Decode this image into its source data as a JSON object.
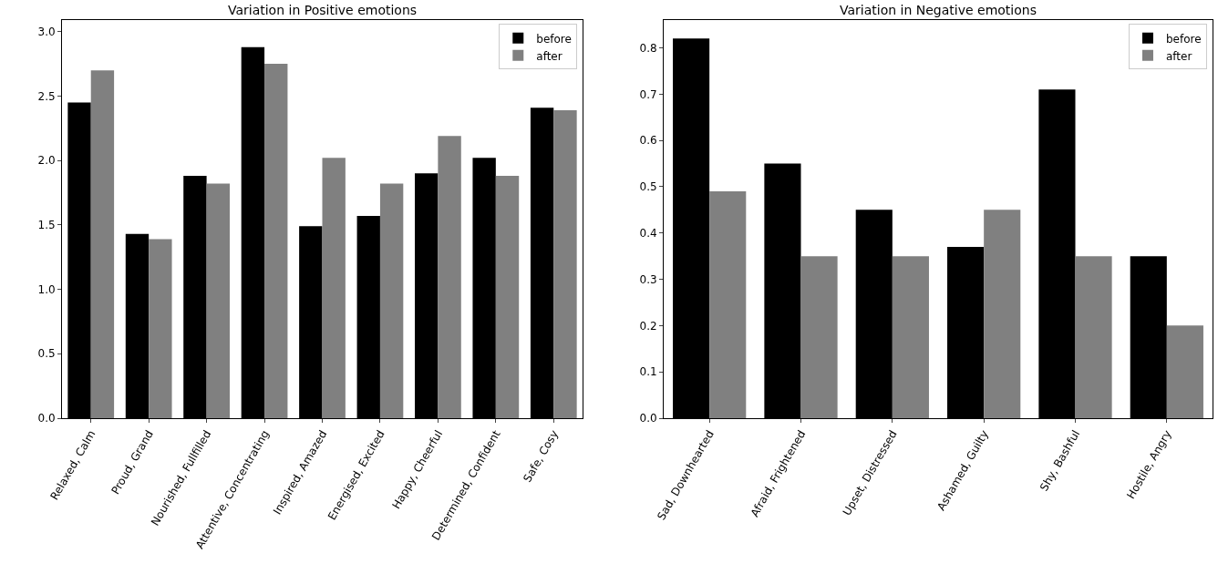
{
  "chart_data": [
    {
      "type": "bar",
      "title": "Variation in Positive emotions",
      "categories": [
        "Relaxed, Calm",
        "Proud, Grand",
        "Nourished, Fullfilled",
        "Attentive, Concentrating",
        "Inspired, Amazed",
        "Energised, Excited",
        "Happy, Cheerful",
        "Determined, Confident",
        "Safe, Cosy"
      ],
      "series": [
        {
          "name": "before",
          "color": "#000000",
          "values": [
            2.45,
            1.43,
            1.88,
            2.88,
            1.49,
            1.57,
            1.9,
            2.02,
            2.41
          ]
        },
        {
          "name": "after",
          "color": "#808080",
          "values": [
            2.7,
            1.39,
            1.82,
            2.75,
            2.02,
            1.82,
            2.19,
            1.88,
            2.39
          ]
        }
      ],
      "ylim": [
        0,
        3.09
      ],
      "yticks": [
        {
          "value": 0,
          "label": "0.0"
        },
        {
          "value": 0.5,
          "label": "0.5"
        },
        {
          "value": 1,
          "label": "1.0"
        },
        {
          "value": 1.5,
          "label": "1.5"
        },
        {
          "value": 2,
          "label": "2.0"
        },
        {
          "value": 2.5,
          "label": "2.5"
        },
        {
          "value": 3,
          "label": "3.0"
        }
      ],
      "grid": false,
      "legend": "top right"
    },
    {
      "type": "bar",
      "title": "Variation in Negative emotions",
      "categories": [
        "Sad, Downhearted",
        "Afraid, Frightened",
        "Upset, Distressed",
        "Ashamed, Guilty",
        "Shy, Bashful",
        "Hostile, Angry"
      ],
      "series": [
        {
          "name": "before",
          "color": "#000000",
          "values": [
            0.82,
            0.55,
            0.45,
            0.37,
            0.71,
            0.35
          ]
        },
        {
          "name": "after",
          "color": "#808080",
          "values": [
            0.49,
            0.35,
            0.35,
            0.45,
            0.35,
            0.2
          ]
        }
      ],
      "ylim": [
        0,
        0.86
      ],
      "yticks": [
        {
          "value": 0,
          "label": "0.0"
        },
        {
          "value": 0.1,
          "label": "0.1"
        },
        {
          "value": 0.2,
          "label": "0.2"
        },
        {
          "value": 0.3,
          "label": "0.3"
        },
        {
          "value": 0.4,
          "label": "0.4"
        },
        {
          "value": 0.5,
          "label": "0.5"
        },
        {
          "value": 0.6,
          "label": "0.6"
        },
        {
          "value": 0.7,
          "label": "0.7"
        },
        {
          "value": 0.8,
          "label": "0.8"
        }
      ],
      "grid": false,
      "legend": "top right"
    }
  ]
}
